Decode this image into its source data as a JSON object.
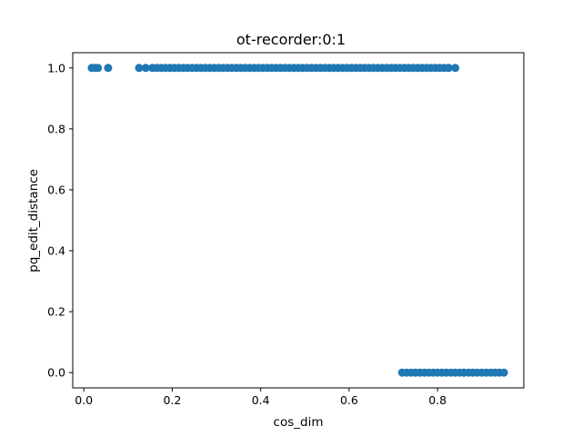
{
  "chart_data": {
    "type": "scatter",
    "title": "ot-recorder:0:1",
    "xlabel": "cos_dim",
    "ylabel": "pq_edit_distance",
    "xlim": [
      -0.025,
      0.995
    ],
    "ylim": [
      -0.05,
      1.05
    ],
    "x_ticks": [
      0.0,
      0.2,
      0.4,
      0.6,
      0.8
    ],
    "x_tick_labels": [
      "0.0",
      "0.2",
      "0.4",
      "0.6",
      "0.8"
    ],
    "y_ticks": [
      0.0,
      0.2,
      0.4,
      0.6,
      0.8,
      1.0
    ],
    "y_tick_labels": [
      "0.0",
      "0.2",
      "0.4",
      "0.6",
      "0.8",
      "1.0"
    ],
    "grid": false,
    "legend": "none",
    "marker_color": "#1f77b4",
    "series": [
      {
        "name": "",
        "points": [
          [
            0.018,
            1.0
          ],
          [
            0.025,
            1.0
          ],
          [
            0.032,
            1.0
          ],
          [
            0.055,
            1.0
          ],
          [
            0.125,
            1.0
          ],
          [
            0.14,
            1.0
          ],
          [
            0.155,
            1.0
          ],
          [
            0.165,
            1.0
          ],
          [
            0.175,
            1.0
          ],
          [
            0.185,
            1.0
          ],
          [
            0.195,
            1.0
          ],
          [
            0.205,
            1.0
          ],
          [
            0.215,
            1.0
          ],
          [
            0.225,
            1.0
          ],
          [
            0.235,
            1.0
          ],
          [
            0.245,
            1.0
          ],
          [
            0.255,
            1.0
          ],
          [
            0.265,
            1.0
          ],
          [
            0.275,
            1.0
          ],
          [
            0.285,
            1.0
          ],
          [
            0.295,
            1.0
          ],
          [
            0.305,
            1.0
          ],
          [
            0.315,
            1.0
          ],
          [
            0.325,
            1.0
          ],
          [
            0.335,
            1.0
          ],
          [
            0.345,
            1.0
          ],
          [
            0.355,
            1.0
          ],
          [
            0.365,
            1.0
          ],
          [
            0.375,
            1.0
          ],
          [
            0.385,
            1.0
          ],
          [
            0.395,
            1.0
          ],
          [
            0.405,
            1.0
          ],
          [
            0.415,
            1.0
          ],
          [
            0.425,
            1.0
          ],
          [
            0.435,
            1.0
          ],
          [
            0.445,
            1.0
          ],
          [
            0.455,
            1.0
          ],
          [
            0.465,
            1.0
          ],
          [
            0.475,
            1.0
          ],
          [
            0.485,
            1.0
          ],
          [
            0.495,
            1.0
          ],
          [
            0.505,
            1.0
          ],
          [
            0.515,
            1.0
          ],
          [
            0.525,
            1.0
          ],
          [
            0.535,
            1.0
          ],
          [
            0.545,
            1.0
          ],
          [
            0.555,
            1.0
          ],
          [
            0.565,
            1.0
          ],
          [
            0.575,
            1.0
          ],
          [
            0.585,
            1.0
          ],
          [
            0.595,
            1.0
          ],
          [
            0.605,
            1.0
          ],
          [
            0.615,
            1.0
          ],
          [
            0.625,
            1.0
          ],
          [
            0.635,
            1.0
          ],
          [
            0.645,
            1.0
          ],
          [
            0.655,
            1.0
          ],
          [
            0.665,
            1.0
          ],
          [
            0.675,
            1.0
          ],
          [
            0.685,
            1.0
          ],
          [
            0.695,
            1.0
          ],
          [
            0.705,
            1.0
          ],
          [
            0.715,
            1.0
          ],
          [
            0.725,
            1.0
          ],
          [
            0.735,
            1.0
          ],
          [
            0.745,
            1.0
          ],
          [
            0.755,
            1.0
          ],
          [
            0.765,
            1.0
          ],
          [
            0.775,
            1.0
          ],
          [
            0.785,
            1.0
          ],
          [
            0.795,
            1.0
          ],
          [
            0.805,
            1.0
          ],
          [
            0.815,
            1.0
          ],
          [
            0.825,
            1.0
          ],
          [
            0.84,
            1.0
          ],
          [
            0.72,
            0.0
          ],
          [
            0.73,
            0.0
          ],
          [
            0.74,
            0.0
          ],
          [
            0.75,
            0.0
          ],
          [
            0.76,
            0.0
          ],
          [
            0.77,
            0.0
          ],
          [
            0.78,
            0.0
          ],
          [
            0.79,
            0.0
          ],
          [
            0.8,
            0.0
          ],
          [
            0.81,
            0.0
          ],
          [
            0.82,
            0.0
          ],
          [
            0.83,
            0.0
          ],
          [
            0.84,
            0.0
          ],
          [
            0.85,
            0.0
          ],
          [
            0.86,
            0.0
          ],
          [
            0.87,
            0.0
          ],
          [
            0.88,
            0.0
          ],
          [
            0.89,
            0.0
          ],
          [
            0.9,
            0.0
          ],
          [
            0.91,
            0.0
          ],
          [
            0.92,
            0.0
          ],
          [
            0.93,
            0.0
          ],
          [
            0.94,
            0.0
          ],
          [
            0.95,
            0.0
          ]
        ]
      }
    ]
  }
}
